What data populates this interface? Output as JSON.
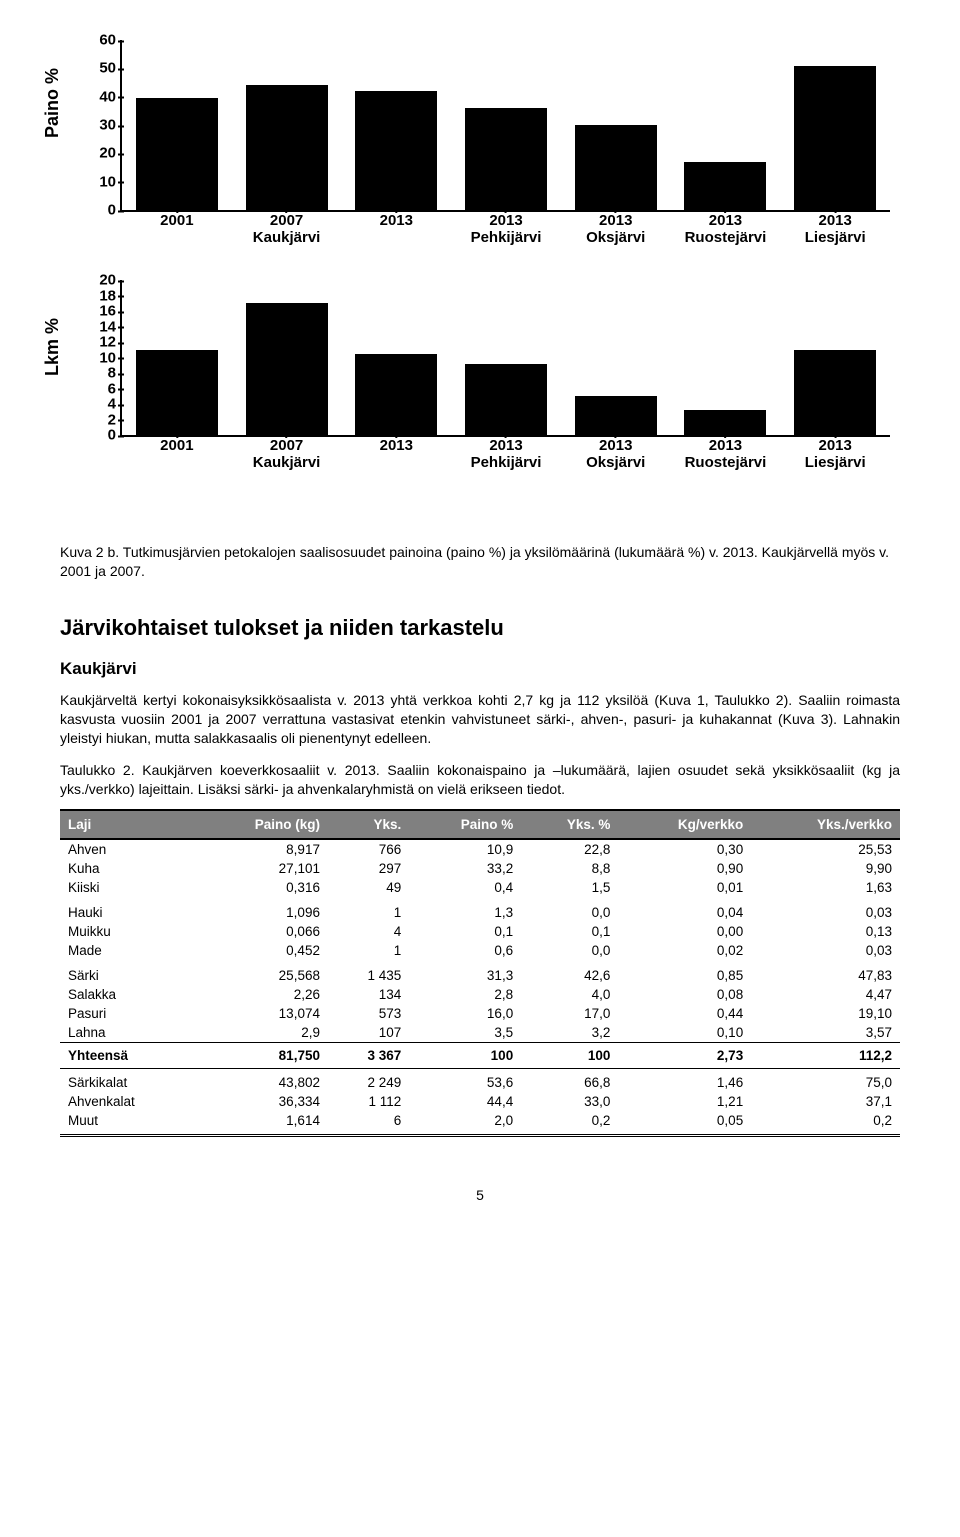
{
  "chart1": {
    "type": "bar",
    "ylabel": "Paino %",
    "ylim": [
      0,
      60
    ],
    "ytick_step": 10,
    "bar_color": "#000000",
    "axis_color": "#000000",
    "background_color": "#ffffff",
    "ylabel_fontsize": 18,
    "tick_fontsize": 15,
    "categories": [
      "2001",
      "2007",
      "2013",
      "2013",
      "2013",
      "2013",
      "2013"
    ],
    "sub_labels": [
      "",
      "Kaukjärvi",
      "",
      "Pehkijärvi",
      "Oksjärvi",
      "Ruostejärvi",
      "Liesjärvi"
    ],
    "values": [
      39.5,
      44,
      42,
      36,
      30,
      17,
      51
    ]
  },
  "chart2": {
    "type": "bar",
    "ylabel": "Lkm %",
    "ylim": [
      0,
      20
    ],
    "ytick_step": 2,
    "bar_color": "#000000",
    "axis_color": "#000000",
    "background_color": "#ffffff",
    "ylabel_fontsize": 18,
    "tick_fontsize": 15,
    "categories": [
      "2001",
      "2007",
      "2013",
      "2013",
      "2013",
      "2013",
      "2013"
    ],
    "sub_labels": [
      "",
      "Kaukjärvi",
      "",
      "Pehkijärvi",
      "Oksjärvi",
      "Ruostejärvi",
      "Liesjärvi"
    ],
    "values": [
      11,
      17,
      10.5,
      9.2,
      5,
      3.2,
      11
    ]
  },
  "caption_fig": "Kuva 2 b. Tutkimusjärvien petokalojen saalisosuudet painoina (paino %) ja yksilömäärinä (lukumäärä %) v. 2013. Kaukjärvellä myös v. 2001 ja 2007.",
  "heading": "Järvikohtaiset tulokset ja niiden tarkastelu",
  "subheading": "Kaukjärvi",
  "body_p1": "Kaukjärveltä kertyi kokonaisyksikkösaalista v. 2013 yhtä verkkoa kohti 2,7 kg ja 112 yksilöä (Kuva 1, Taulukko 2). Saaliin roimasta kasvusta vuosiin 2001 ja 2007 verrattuna vastasivat etenkin vahvistuneet särki-, ahven-, pasuri- ja kuhakannat (Kuva 3). Lahnakin yleistyi hiukan, mutta salakkasaalis oli pienentynyt edelleen.",
  "table_caption": "Taulukko 2. Kaukjärven koeverkkosaaliit v. 2013. Saaliin kokonaispaino ja –lukumäärä, lajien osuudet sekä yksikkösaaliit (kg ja yks./verkko) lajeittain. Lisäksi särki- ja ahvenkalaryhmistä on vielä erikseen tiedot.",
  "table": {
    "header_bg": "#808080",
    "header_color": "#ffffff",
    "border_color": "#000000",
    "columns": [
      "Laji",
      "Paino (kg)",
      "Yks.",
      "Paino %",
      "Yks. %",
      "Kg/verkko",
      "Yks./verkko"
    ],
    "groups": [
      [
        {
          "laji": "Ahven",
          "paino": "8,917",
          "yks": "766",
          "painop": "10,9",
          "yksp": "22,8",
          "kgv": "0,30",
          "ykv": "25,53"
        },
        {
          "laji": "Kuha",
          "paino": "27,101",
          "yks": "297",
          "painop": "33,2",
          "yksp": "8,8",
          "kgv": "0,90",
          "ykv": "9,90"
        },
        {
          "laji": "Kiiski",
          "paino": "0,316",
          "yks": "49",
          "painop": "0,4",
          "yksp": "1,5",
          "kgv": "0,01",
          "ykv": "1,63"
        }
      ],
      [
        {
          "laji": "Hauki",
          "paino": "1,096",
          "yks": "1",
          "painop": "1,3",
          "yksp": "0,0",
          "kgv": "0,04",
          "ykv": "0,03"
        },
        {
          "laji": "Muikku",
          "paino": "0,066",
          "yks": "4",
          "painop": "0,1",
          "yksp": "0,1",
          "kgv": "0,00",
          "ykv": "0,13"
        },
        {
          "laji": "Made",
          "paino": "0,452",
          "yks": "1",
          "painop": "0,6",
          "yksp": "0,0",
          "kgv": "0,02",
          "ykv": "0,03"
        }
      ],
      [
        {
          "laji": "Särki",
          "paino": "25,568",
          "yks": "1 435",
          "painop": "31,3",
          "yksp": "42,6",
          "kgv": "0,85",
          "ykv": "47,83"
        },
        {
          "laji": "Salakka",
          "paino": "2,26",
          "yks": "134",
          "painop": "2,8",
          "yksp": "4,0",
          "kgv": "0,08",
          "ykv": "4,47"
        },
        {
          "laji": "Pasuri",
          "paino": "13,074",
          "yks": "573",
          "painop": "16,0",
          "yksp": "17,0",
          "kgv": "0,44",
          "ykv": "19,10"
        },
        {
          "laji": "Lahna",
          "paino": "2,9",
          "yks": "107",
          "painop": "3,5",
          "yksp": "3,2",
          "kgv": "0,10",
          "ykv": "3,57"
        }
      ]
    ],
    "totals": {
      "laji": "Yhteensä",
      "paino": "81,750",
      "yks": "3 367",
      "painop": "100",
      "yksp": "100",
      "kgv": "2,73",
      "ykv": "112,2"
    },
    "summary": [
      {
        "laji": "Särkikalat",
        "paino": "43,802",
        "yks": "2 249",
        "painop": "53,6",
        "yksp": "66,8",
        "kgv": "1,46",
        "ykv": "75,0"
      },
      {
        "laji": "Ahvenkalat",
        "paino": "36,334",
        "yks": "1 112",
        "painop": "44,4",
        "yksp": "33,0",
        "kgv": "1,21",
        "ykv": "37,1"
      },
      {
        "laji": "Muut",
        "paino": "1,614",
        "yks": "6",
        "painop": "2,0",
        "yksp": "0,2",
        "kgv": "0,05",
        "ykv": "0,2"
      }
    ]
  },
  "pagenum": "5"
}
